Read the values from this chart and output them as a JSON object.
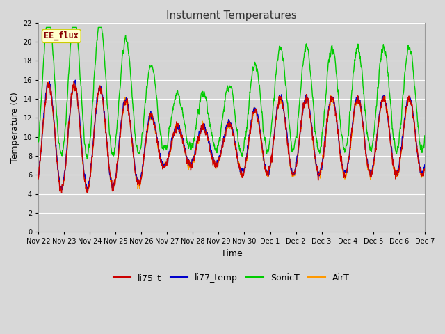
{
  "title": "Instument Temperatures",
  "xlabel": "Time",
  "ylabel": "Temperature (C)",
  "ylim": [
    0,
    22
  ],
  "yticks": [
    0,
    2,
    4,
    6,
    8,
    10,
    12,
    14,
    16,
    18,
    20,
    22
  ],
  "xtick_labels": [
    "Nov 22",
    "Nov 23",
    "Nov 24",
    "Nov 25",
    "Nov 26",
    "Nov 27",
    "Nov 28",
    "Nov 29",
    "Nov 30",
    "Dec 1",
    "Dec 2",
    "Dec 3",
    "Dec 4",
    "Dec 5",
    "Dec 6",
    "Dec 7"
  ],
  "colors": {
    "li75_t": "#cc0000",
    "li77_temp": "#0000cc",
    "SonicT": "#00cc00",
    "AirT": "#ff9900"
  },
  "fig_bg": "#d8d8d8",
  "plot_bg": "#d4d4d4",
  "annotation_text": "EE_flux",
  "annotation_fg": "#880000",
  "annotation_bg": "#ffffcc",
  "annotation_border": "#cccc00",
  "title_fontsize": 11,
  "tick_fontsize": 7,
  "legend_fontsize": 9,
  "axis_label_fontsize": 9,
  "line_width": 1.0
}
